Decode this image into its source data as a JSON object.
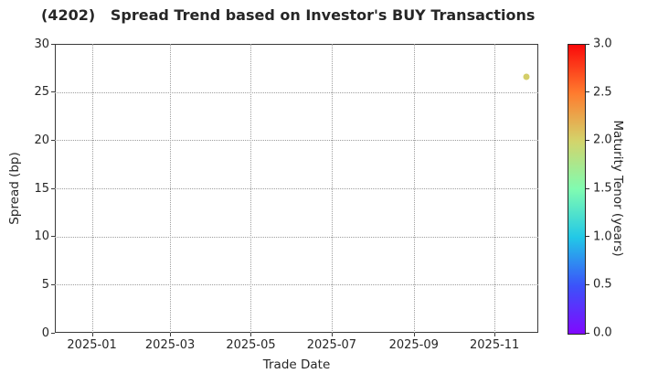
{
  "title": "(4202)   Spread Trend based on Investor's BUY Transactions",
  "chart_data": {
    "type": "scatter",
    "title": "(4202)   Spread Trend based on Investor's BUY Transactions",
    "xlabel": "Trade Date",
    "ylabel": "Spread (bp)",
    "xlim": [
      "2024-12-04",
      "2025-12-04"
    ],
    "ylim": [
      0,
      30
    ],
    "yticks": [
      0,
      5,
      10,
      15,
      20,
      25,
      30
    ],
    "xticks": [
      "2025-01",
      "2025-03",
      "2025-05",
      "2025-07",
      "2025-09",
      "2025-11"
    ],
    "grid": true,
    "grid_style": "dotted",
    "legend_position": "none",
    "points": [
      {
        "trade_date": "2025-11-25",
        "spread_bp": 26.6,
        "maturity_tenor_years": 2.0,
        "color": "#d4ce69"
      }
    ],
    "colorbar": {
      "label": "Maturity Tenor (years)",
      "min": 0.0,
      "max": 3.0,
      "ticks": [
        0.0,
        0.5,
        1.0,
        1.5,
        2.0,
        2.5,
        3.0
      ],
      "tick_decimals": 1,
      "colormap": "rainbow",
      "gradient_stops_bottom_to_top": [
        "#8009fe",
        "#3b53fa",
        "#22c8e7",
        "#80fcb1",
        "#d3d46b",
        "#ff7b2e",
        "#fa0a0a"
      ]
    },
    "colors": {
      "background": "#ffffff",
      "text": "#262626",
      "grid": "#9e9e9e",
      "spine": "#3a3a3a"
    }
  }
}
